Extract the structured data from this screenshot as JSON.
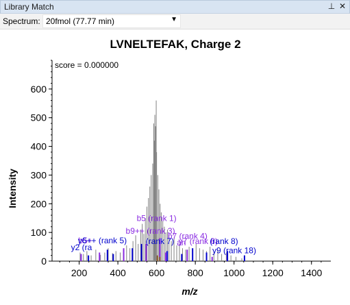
{
  "window": {
    "title": "Library Match",
    "pin_icon": "pin-icon",
    "close_icon": "close-icon"
  },
  "toolbar": {
    "spectrum_label": "Spectrum:",
    "spectrum_value": "20fmol (77.77 min)"
  },
  "chart_data": {
    "type": "bar",
    "title": "LVNELTEFAK, Charge 2",
    "score_text": "score = 0.000000",
    "xlabel": "m/z",
    "ylabel": "Intensity",
    "xlim": [
      60,
      1500
    ],
    "ylim": [
      0,
      700
    ],
    "xticks": [
      200,
      400,
      600,
      800,
      1000,
      1200,
      1400
    ],
    "yticks": [
      0,
      100,
      200,
      300,
      400,
      500,
      600
    ],
    "colors": {
      "unmatched": "#808080",
      "b_ion": "#8a2be2",
      "y_ion": "#0000cd",
      "precursor": "#8b5a2b"
    },
    "peaks_gray": [
      [
        205,
        30
      ],
      [
        222,
        25
      ],
      [
        240,
        35
      ],
      [
        262,
        20
      ],
      [
        286,
        40
      ],
      [
        310,
        22
      ],
      [
        332,
        30
      ],
      [
        350,
        45
      ],
      [
        372,
        28
      ],
      [
        390,
        35
      ],
      [
        412,
        30
      ],
      [
        428,
        40
      ],
      [
        445,
        55
      ],
      [
        462,
        45
      ],
      [
        478,
        70
      ],
      [
        492,
        90
      ],
      [
        505,
        60
      ],
      [
        518,
        110
      ],
      [
        526,
        130
      ],
      [
        534,
        95
      ],
      [
        542,
        150
      ],
      [
        550,
        190
      ],
      [
        558,
        220
      ],
      [
        565,
        260
      ],
      [
        572,
        300
      ],
      [
        580,
        340
      ],
      [
        588,
        420
      ],
      [
        594,
        470
      ],
      [
        600,
        380
      ],
      [
        606,
        300
      ],
      [
        612,
        250
      ],
      [
        618,
        200
      ],
      [
        624,
        170
      ],
      [
        632,
        140
      ],
      [
        640,
        120
      ],
      [
        648,
        100
      ],
      [
        656,
        110
      ],
      [
        664,
        90
      ],
      [
        676,
        70
      ],
      [
        690,
        80
      ],
      [
        704,
        55
      ],
      [
        718,
        60
      ],
      [
        734,
        45
      ],
      [
        750,
        40
      ],
      [
        768,
        50
      ],
      [
        786,
        35
      ],
      [
        804,
        60
      ],
      [
        822,
        45
      ],
      [
        840,
        40
      ],
      [
        858,
        35
      ],
      [
        876,
        50
      ],
      [
        896,
        30
      ],
      [
        916,
        40
      ],
      [
        936,
        25
      ],
      [
        960,
        30
      ],
      [
        984,
        20
      ],
      [
        1010,
        15
      ],
      [
        1040,
        10
      ],
      [
        598,
        560
      ],
      [
        585,
        480
      ],
      [
        591,
        510
      ]
    ],
    "peaks_b": [
      [
        210,
        25
      ],
      [
        305,
        30
      ],
      [
        430,
        45
      ],
      [
        546,
        60
      ],
      [
        617,
        80
      ],
      [
        647,
        30
      ],
      [
        758,
        40
      ],
      [
        887,
        15
      ],
      [
        965,
        25
      ]
    ],
    "peaks_y": [
      [
        248,
        20
      ],
      [
        346,
        40
      ],
      [
        376,
        25
      ],
      [
        475,
        45
      ],
      [
        522,
        60
      ],
      [
        655,
        35
      ],
      [
        730,
        25
      ],
      [
        786,
        45
      ],
      [
        858,
        30
      ],
      [
        966,
        35
      ],
      [
        1054,
        20
      ]
    ],
    "peaks_p": [
      [
        604,
        20
      ],
      [
        617,
        15
      ]
    ],
    "annotations": [
      {
        "text": "b5 (rank 1)",
        "x": 600,
        "y": 140,
        "color": "#8a2be2"
      },
      {
        "text": "b9++ (rank 3)",
        "x": 568,
        "y": 95,
        "color": "#8a2be2"
      },
      {
        "text": "b7 (rank 4)",
        "x": 760,
        "y": 78,
        "color": "#8a2be2"
      },
      {
        "text": "b5+",
        "x": 232,
        "y": 62,
        "color": "#8a2be2"
      },
      {
        "text": "y6++ (rank 5)",
        "x": 320,
        "y": 62,
        "color": "#0000cd"
      },
      {
        "text": "(rank 7)",
        "x": 617,
        "y": 60,
        "color": "#0000cd"
      },
      {
        "text": "an",
        "x": 728,
        "y": 55,
        "color": "#8a2be2"
      },
      {
        "text": "y7 (rank 6)",
        "x": 815,
        "y": 60,
        "color": "#8a2be2"
      },
      {
        "text": "(rank 8)",
        "x": 948,
        "y": 60,
        "color": "#0000cd"
      },
      {
        "text": "y2 (ra",
        "x": 212,
        "y": 38,
        "color": "#0000cd"
      },
      {
        "text": "y9 (rank 18)",
        "x": 1001,
        "y": 28,
        "color": "#0000cd"
      }
    ]
  }
}
